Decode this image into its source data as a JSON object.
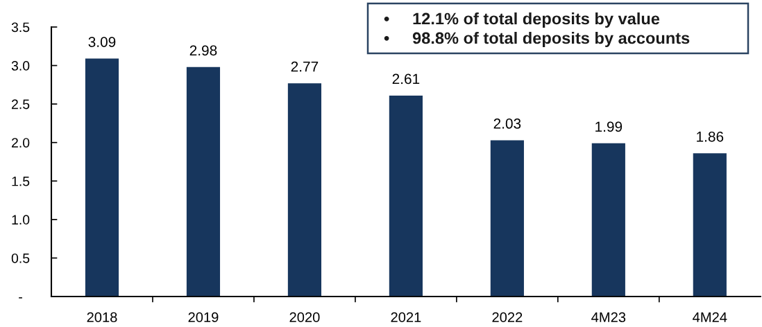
{
  "chart_data": {
    "type": "bar",
    "categories": [
      "2018",
      "2019",
      "2020",
      "2021",
      "2022",
      "4M23",
      "4M24"
    ],
    "values": [
      3.09,
      2.98,
      2.77,
      2.61,
      2.03,
      1.99,
      1.86
    ],
    "color": "#17365d",
    "ylim": [
      0,
      3.5
    ],
    "yticks": [
      {
        "value": 0,
        "label": "-"
      },
      {
        "value": 0.5,
        "label": "0.5"
      },
      {
        "value": 1,
        "label": "1.0"
      },
      {
        "value": 1.5,
        "label": "1.5"
      },
      {
        "value": 2,
        "label": "2.0"
      },
      {
        "value": 2.5,
        "label": "2.5"
      },
      {
        "value": 3,
        "label": "3.0"
      },
      {
        "value": 3.5,
        "label": "3.5"
      }
    ],
    "data_labels": true,
    "grid": false,
    "annotations": [
      "•     12.1% of total deposits by value",
      "•     98.8% of total deposits by accounts"
    ]
  }
}
